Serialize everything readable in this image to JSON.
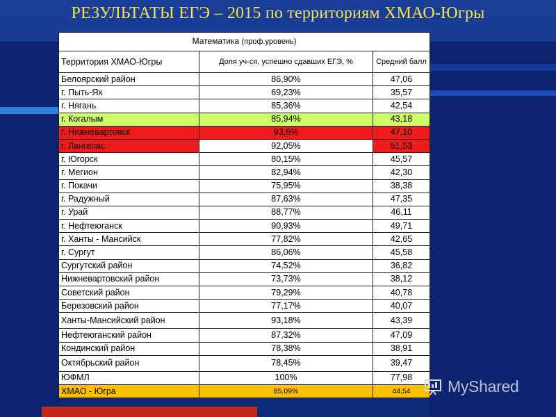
{
  "title": "РЕЗУЛЬТАТЫ ЕГЭ – 2015 по территориям ХМАО-Югры",
  "table": {
    "subject": "Математика",
    "subject_level": "(проф.уровень)",
    "col_territory": "Территория ХМАО-Югры",
    "col_share": "Доля уч-ся, успешно сдавших ЕГЭ, %",
    "col_avg": "Средний балл",
    "rows": [
      {
        "name": "Белоярский район",
        "share": "86,90%",
        "avg": "47,06"
      },
      {
        "name": "г. Пыть-Ях",
        "share": "69,23%",
        "avg": "35,57"
      },
      {
        "name": "г. Нягань",
        "share": "85,36%",
        "avg": "42,54"
      },
      {
        "name": "г. Когалым",
        "share": "85,94%",
        "avg": "43,18"
      },
      {
        "name": "г. Нижневартовск",
        "share": "93,6%",
        "avg": "47,10"
      },
      {
        "name": "г. Лангепас",
        "share": "92,05%",
        "avg": "51,53"
      },
      {
        "name": "г. Югорск",
        "share": "80,15%",
        "avg": "45,57"
      },
      {
        "name": "г. Мегион",
        "share": "82,94%",
        "avg": "42,30"
      },
      {
        "name": "г. Покачи",
        "share": "75,95%",
        "avg": "38,38"
      },
      {
        "name": "г. Радужный",
        "share": "87,63%",
        "avg": "47,35"
      },
      {
        "name": "г. Урай",
        "share": "88,77%",
        "avg": "46,11"
      },
      {
        "name": "г. Нефтеюганск",
        "share": "90,93%",
        "avg": "49,71"
      },
      {
        "name": "г. Ханты - Мансийск",
        "share": "77,82%",
        "avg": "42,65"
      },
      {
        "name": "г. Сургут",
        "share": "86,06%",
        "avg": "45,58"
      },
      {
        "name": "Сургутский район",
        "share": "74,52%",
        "avg": "36,82"
      },
      {
        "name": "Нижневартовский район",
        "share": "73,73%",
        "avg": "38,12"
      },
      {
        "name": "Советский район",
        "share": "79,29%",
        "avg": "40,78"
      },
      {
        "name": "Березовский район",
        "share": "77,17%",
        "avg": "40,07"
      },
      {
        "name": "Ханты-Мансийский район",
        "share": "93,18%",
        "avg": "43,39"
      },
      {
        "name": "Нефтеюганский район",
        "share": "87,32%",
        "avg": "47,09"
      },
      {
        "name": "Кондинский район",
        "share": "78,38%",
        "avg": "38,91"
      },
      {
        "name": "Октябрьский район",
        "share": "78,45%",
        "avg": "39,47"
      },
      {
        "name": "ЮФМЛ",
        "share": "100%",
        "avg": "77,98"
      }
    ],
    "total": {
      "name": "ХМАО - Югра",
      "share": "85,09%",
      "avg": "44,54"
    }
  },
  "watermark": "MyShared",
  "colors": {
    "title": "#f2e44a",
    "highlight_green": "#ccff66",
    "highlight_red": "#ee1c1c",
    "total_row": "#ffc000"
  }
}
